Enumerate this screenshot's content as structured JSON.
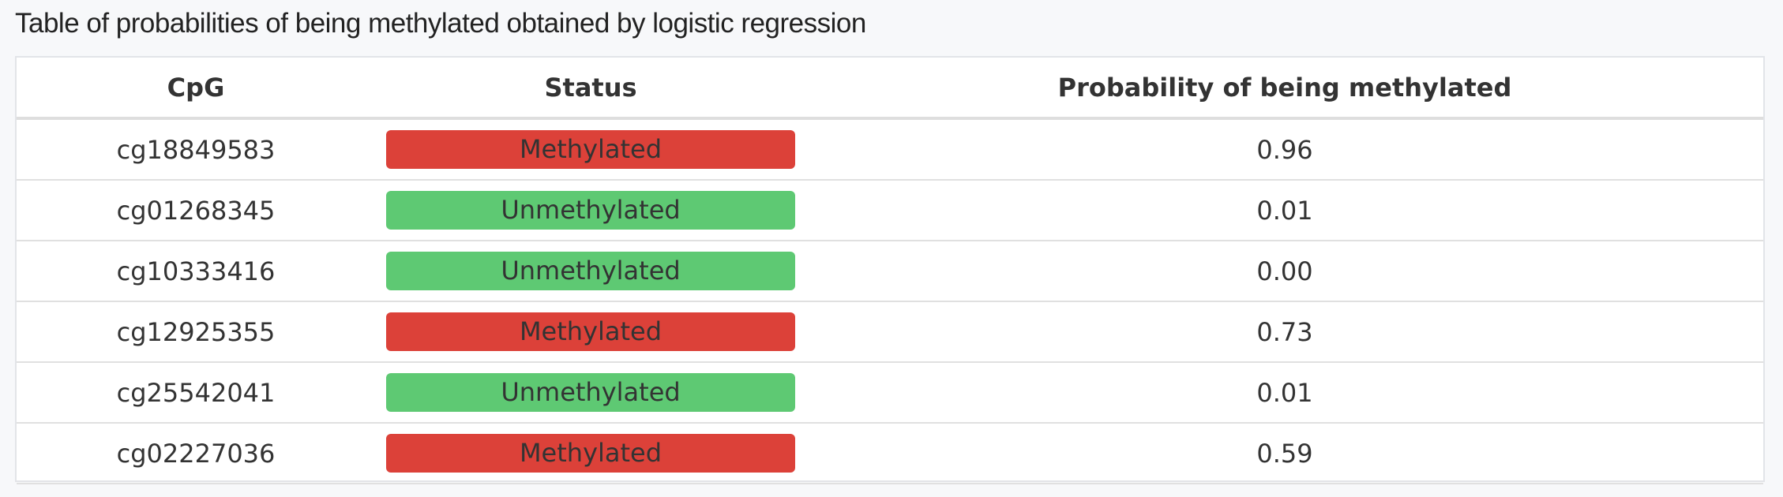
{
  "title": "Table of probabilities of being methylated obtained by logistic regression",
  "colors": {
    "methylated": "#dc4139",
    "unmethylated": "#5ec973"
  },
  "columns": [
    "CpG",
    "Status",
    "Probability of being methylated"
  ],
  "rows": [
    {
      "cpg": "cg18849583",
      "status": "Methylated",
      "probability": "0.96"
    },
    {
      "cpg": "cg01268345",
      "status": "Unmethylated",
      "probability": "0.01"
    },
    {
      "cpg": "cg10333416",
      "status": "Unmethylated",
      "probability": "0.00"
    },
    {
      "cpg": "cg12925355",
      "status": "Methylated",
      "probability": "0.73"
    },
    {
      "cpg": "cg25542041",
      "status": "Unmethylated",
      "probability": "0.01"
    },
    {
      "cpg": "cg02227036",
      "status": "Methylated",
      "probability": "0.59"
    }
  ]
}
